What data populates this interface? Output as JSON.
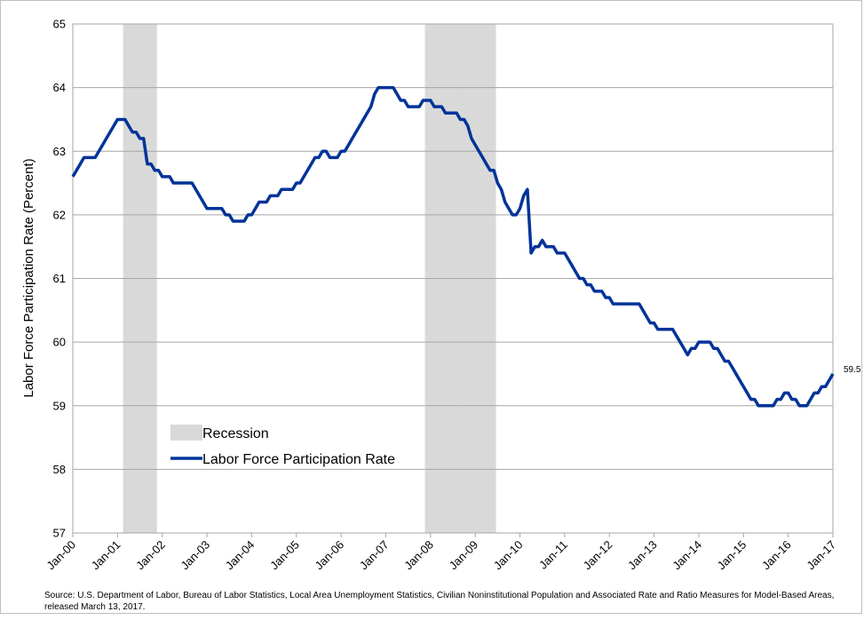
{
  "chart_data": {
    "type": "line",
    "y_label": "Labor Force Participation Rate (Percent)",
    "note": "Source: U.S. Department of Labor, Bureau of Labor Statistics, Local Area Unemployment Statistics, Civilian Noninstitutional Population and Associated Rate and Ratio Measures for Model-Based Areas, released March 13, 2017.",
    "categories": [
      "Jan-00",
      null,
      null,
      null,
      null,
      null,
      null,
      null,
      null,
      null,
      null,
      null,
      "Jan-01",
      null,
      null,
      null,
      null,
      null,
      null,
      null,
      null,
      null,
      null,
      null,
      "Jan-02",
      null,
      null,
      null,
      null,
      null,
      null,
      null,
      null,
      null,
      null,
      null,
      "Jan-03",
      null,
      null,
      null,
      null,
      null,
      null,
      null,
      null,
      null,
      null,
      null,
      "Jan-04",
      null,
      null,
      null,
      null,
      null,
      null,
      null,
      null,
      null,
      null,
      null,
      "Jan-05",
      null,
      null,
      null,
      null,
      null,
      null,
      null,
      null,
      null,
      null,
      null,
      "Jan-06",
      null,
      null,
      null,
      null,
      null,
      null,
      null,
      null,
      null,
      null,
      null,
      "Jan-07",
      null,
      null,
      null,
      null,
      null,
      null,
      null,
      null,
      null,
      null,
      null,
      "Jan-08",
      null,
      null,
      null,
      null,
      null,
      null,
      null,
      null,
      null,
      null,
      null,
      "Jan-09",
      null,
      null,
      null,
      null,
      null,
      null,
      null,
      null,
      null,
      null,
      null,
      "Jan-10",
      null,
      null,
      null,
      null,
      null,
      null,
      null,
      null,
      null,
      null,
      null,
      "Jan-11",
      null,
      null,
      null,
      null,
      null,
      null,
      null,
      null,
      null,
      null,
      null,
      "Jan-12",
      null,
      null,
      null,
      null,
      null,
      null,
      null,
      null,
      null,
      null,
      null,
      "Jan-13",
      null,
      null,
      null,
      null,
      null,
      null,
      null,
      null,
      null,
      null,
      null,
      "Jan-14",
      null,
      null,
      null,
      null,
      null,
      null,
      null,
      null,
      null,
      null,
      null,
      "Jan-15",
      null,
      null,
      null,
      null,
      null,
      null,
      null,
      null,
      null,
      null,
      null,
      "Jan-16",
      null,
      null,
      null,
      null,
      null,
      null,
      null,
      null,
      null,
      null,
      null,
      "Jan-17"
    ],
    "series": [
      {
        "name": "Recession",
        "type": "bar",
        "color": "#d9d9d9",
        "values": [
          null,
          null,
          null,
          null,
          null,
          null,
          null,
          null,
          null,
          null,
          null,
          null,
          null,
          null,
          65,
          65,
          65,
          65,
          65,
          65,
          65,
          65,
          65,
          null,
          null,
          null,
          null,
          null,
          null,
          null,
          null,
          null,
          null,
          null,
          null,
          null,
          null,
          null,
          null,
          null,
          null,
          null,
          null,
          null,
          null,
          null,
          null,
          null,
          null,
          null,
          null,
          null,
          null,
          null,
          null,
          null,
          null,
          null,
          null,
          null,
          null,
          null,
          null,
          null,
          null,
          null,
          null,
          null,
          null,
          null,
          null,
          null,
          null,
          null,
          null,
          null,
          null,
          null,
          null,
          null,
          null,
          null,
          null,
          null,
          null,
          null,
          null,
          null,
          null,
          null,
          null,
          null,
          null,
          null,
          null,
          65,
          65,
          65,
          65,
          65,
          65,
          65,
          65,
          65,
          65,
          65,
          65,
          65,
          65,
          65,
          65,
          65,
          65,
          65,
          null,
          null,
          null,
          null,
          null,
          null,
          null,
          null,
          null,
          null,
          null,
          null,
          null,
          null,
          null,
          null,
          null,
          null,
          null,
          null,
          null,
          null,
          null,
          null,
          null,
          null,
          null,
          null,
          null,
          null,
          null,
          null,
          null,
          null,
          null,
          null,
          null,
          null,
          null,
          null,
          null,
          null,
          null,
          null,
          null,
          null,
          null,
          null,
          null,
          null,
          null,
          null,
          null,
          null,
          null,
          null,
          null,
          null,
          null,
          null,
          null,
          null,
          null,
          null,
          null,
          null,
          null,
          null,
          null,
          null,
          null,
          null,
          null,
          null,
          null,
          null,
          null,
          null,
          null,
          null,
          null,
          null,
          null,
          null,
          null,
          null,
          null,
          null,
          null,
          null,
          null
        ]
      },
      {
        "name": "Labor Force Participation Rate",
        "type": "line",
        "color": "#003399",
        "values": [
          62.6,
          62.7,
          62.8,
          62.9,
          62.9,
          62.9,
          62.9,
          63.0,
          63.1,
          63.2,
          63.3,
          63.4,
          63.5,
          63.5,
          63.5,
          63.4,
          63.3,
          63.3,
          63.2,
          63.2,
          62.8,
          62.8,
          62.7,
          62.7,
          62.6,
          62.6,
          62.6,
          62.5,
          62.5,
          62.5,
          62.5,
          62.5,
          62.5,
          62.4,
          62.3,
          62.2,
          62.1,
          62.1,
          62.1,
          62.1,
          62.1,
          62.0,
          62.0,
          61.9,
          61.9,
          61.9,
          61.9,
          62.0,
          62.0,
          62.1,
          62.2,
          62.2,
          62.2,
          62.3,
          62.3,
          62.3,
          62.4,
          62.4,
          62.4,
          62.4,
          62.5,
          62.5,
          62.6,
          62.7,
          62.8,
          62.9,
          62.9,
          63.0,
          63.0,
          62.9,
          62.9,
          62.9,
          63.0,
          63.0,
          63.1,
          63.2,
          63.3,
          63.4,
          63.5,
          63.6,
          63.7,
          63.9,
          64.0,
          64.0,
          64.0,
          64.0,
          64.0,
          63.9,
          63.8,
          63.8,
          63.7,
          63.7,
          63.7,
          63.7,
          63.8,
          63.8,
          63.8,
          63.7,
          63.7,
          63.7,
          63.6,
          63.6,
          63.6,
          63.6,
          63.5,
          63.5,
          63.4,
          63.2,
          63.1,
          63.0,
          62.9,
          62.8,
          62.7,
          62.7,
          62.5,
          62.4,
          62.2,
          62.1,
          62.0,
          62.0,
          62.1,
          62.3,
          62.4,
          61.4,
          61.5,
          61.5,
          61.6,
          61.5,
          61.5,
          61.5,
          61.4,
          61.4,
          61.4,
          61.3,
          61.2,
          61.1,
          61.0,
          61.0,
          60.9,
          60.9,
          60.8,
          60.8,
          60.8,
          60.7,
          60.7,
          60.6,
          60.6,
          60.6,
          60.6,
          60.6,
          60.6,
          60.6,
          60.6,
          60.5,
          60.4,
          60.3,
          60.3,
          60.2,
          60.2,
          60.2,
          60.2,
          60.2,
          60.1,
          60.0,
          59.9,
          59.8,
          59.9,
          59.9,
          60.0,
          60.0,
          60.0,
          60.0,
          59.9,
          59.9,
          59.8,
          59.7,
          59.7,
          59.6,
          59.5,
          59.4,
          59.3,
          59.2,
          59.1,
          59.1,
          59.0,
          59.0,
          59.0,
          59.0,
          59.0,
          59.1,
          59.1,
          59.2,
          59.2,
          59.1,
          59.1,
          59.0,
          59.0,
          59.0,
          59.1,
          59.2,
          59.2,
          59.3,
          59.3,
          59.4,
          59.5
        ]
      }
    ],
    "ylim": [
      57,
      65
    ],
    "yticks": [
      57,
      58,
      59,
      60,
      61,
      62,
      63,
      64,
      65
    ],
    "grid": true,
    "legend": "lower left"
  }
}
